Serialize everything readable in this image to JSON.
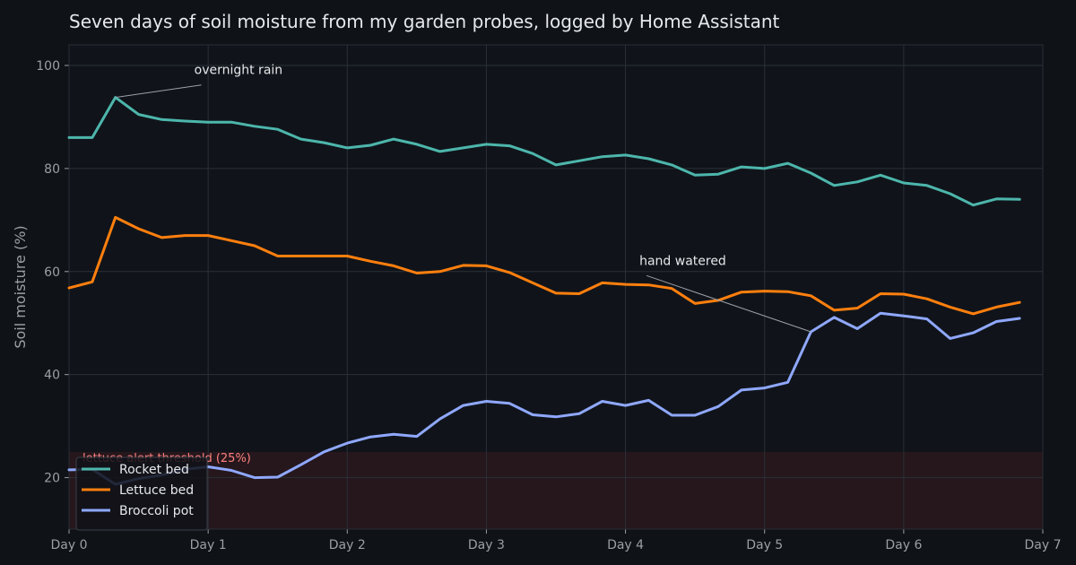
{
  "chart_data": {
    "type": "line",
    "title": "Seven days of soil moisture from my garden probes, logged by Home Assistant",
    "xlabel": "",
    "ylabel": "Soil moisture (%)",
    "xlim": [
      0,
      7
    ],
    "ylim": [
      10,
      104
    ],
    "grid": true,
    "legend_position": "lower-left",
    "x_ticks": [
      0,
      1,
      2,
      3,
      4,
      5,
      6,
      7
    ],
    "x_tick_labels": [
      "Day 0",
      "Day 1",
      "Day 2",
      "Day 3",
      "Day 4",
      "Day 5",
      "Day 6",
      "Day 7"
    ],
    "y_ticks": [
      20,
      40,
      60,
      80,
      100
    ],
    "y_tick_labels": [
      "20",
      "40",
      "60",
      "80",
      "100"
    ],
    "x": [
      0,
      0.1667,
      0.3333,
      0.5,
      0.6667,
      0.8333,
      1,
      1.1667,
      1.3333,
      1.5,
      1.6667,
      1.8333,
      2,
      2.1667,
      2.3333,
      2.5,
      2.6667,
      2.8333,
      3,
      3.1667,
      3.3333,
      3.5,
      3.6667,
      3.8333,
      4,
      4.1667,
      4.3333,
      4.5,
      4.6667,
      4.8333,
      5,
      5.1667,
      5.3333,
      5.5,
      5.6667,
      5.8333,
      6,
      6.1667,
      6.3333,
      6.5,
      6.6667,
      6.8333
    ],
    "series": [
      {
        "name": "Rocket bed",
        "color": "#4db6ac",
        "values": [
          86,
          86,
          93.8,
          90.5,
          89.5,
          89.2,
          89,
          89,
          88.2,
          87.6,
          85.7,
          85,
          84,
          84.5,
          85.7,
          84.7,
          83.3,
          84,
          84.7,
          84.4,
          82.9,
          80.7,
          81.5,
          82.3,
          82.6,
          81.9,
          80.7,
          78.7,
          78.9,
          80.3,
          80,
          81,
          79.1,
          76.7,
          77.4,
          78.7,
          77.2,
          76.7,
          75.1,
          72.9,
          74.1,
          74
        ]
      },
      {
        "name": "Lettuce bed",
        "color": "#ff7f0e",
        "values": [
          56.8,
          58,
          70.5,
          68.3,
          66.6,
          67,
          67,
          66,
          65,
          63,
          63,
          63,
          63,
          62,
          61.1,
          59.7,
          60,
          61.2,
          61.1,
          59.8,
          57.8,
          55.8,
          55.7,
          57.8,
          57.5,
          57.4,
          56.7,
          53.8,
          54.4,
          56,
          56.2,
          56.1,
          55.3,
          52.5,
          52.9,
          55.7,
          55.6,
          54.7,
          53.1,
          51.8,
          53.1,
          54
        ]
      },
      {
        "name": "Broccoli pot",
        "color": "#8fa8ff",
        "values": [
          21.5,
          21.6,
          18.7,
          19.8,
          20.5,
          21.6,
          22.1,
          21.4,
          20,
          20.1,
          22.5,
          25,
          26.7,
          27.9,
          28.4,
          28,
          31.4,
          34,
          34.8,
          34.4,
          32.2,
          31.8,
          32.4,
          34.8,
          34,
          35,
          32.1,
          32.1,
          33.8,
          37,
          37.4,
          38.5,
          48.3,
          51.1,
          48.9,
          51.9,
          51.4,
          50.8,
          47,
          48.1,
          50.3,
          50.9
        ]
      }
    ],
    "threshold": {
      "value": 25,
      "label": "lettuce alert threshold (25%)",
      "color": "#ff8080"
    },
    "annotations": [
      {
        "text": "overnight rain",
        "x": 0.3333,
        "y": 93.8,
        "text_x": 0.9,
        "text_y": 98.3
      },
      {
        "text": "hand watered",
        "x": 5.3333,
        "y": 48.3,
        "text_x": 4.1,
        "text_y": 61.3
      }
    ]
  }
}
